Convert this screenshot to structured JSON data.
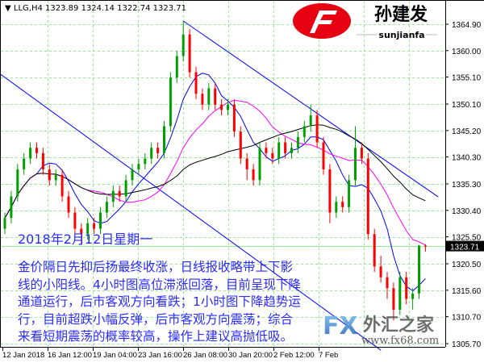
{
  "header": {
    "symbol": "LLG,H4",
    "open": "1323.89",
    "high": "1324.14",
    "low": "1322.74",
    "close": "1323.71"
  },
  "logo": {
    "name": "孙建发",
    "pinyin": "sunjianfa",
    "letter": "F"
  },
  "watermark": {
    "fx": "FX",
    "cn": "外汇之家",
    "url": "www.fx68.com"
  },
  "annotation": {
    "date": "2018年2月12日星期一",
    "lines": [
      "金价隔日先抑后扬最终收涨，日线报收略带上下影",
      "线的小阳线。4小时图高位滞涨回落，目前呈现下降",
      "通道运行，后市客观方向看跌；1小时图下降趋势运",
      "行，目前超跌小幅反弹，后市客观方向震荡；综合",
      "来看短期震荡的概率较高，操作上建议高抛低吸。"
    ]
  },
  "chart_data": {
    "type": "candlestick",
    "symbol": "LLG",
    "timeframe": "H4",
    "grid": true,
    "colors": {
      "bull": "#00a000",
      "bear": "#ff0000",
      "grid": "#90ee90",
      "trendline": "#0000ff",
      "ma_fast": "#0000ff",
      "ma_mid": "#ff00ff",
      "ma_slow": "#000000",
      "price_line": "#90ee90",
      "text": "#2b2bff"
    },
    "ylim": [
      1304.5,
      1368.5
    ],
    "y_ticks": [
      "1364.90",
      "1360.00",
      "1355.10",
      "1350.10",
      "1345.20",
      "1340.30",
      "1335.30",
      "1330.40",
      "1325.50",
      "1320.50",
      "1315.60",
      "1310.70",
      "1305.70"
    ],
    "x_ticks": [
      "12 Jan 2018",
      "16 Jan 12:00",
      "19 Jan 04:00",
      "23 Jan 16:00",
      "26 Jan 08:00",
      "30 Jan 20:00",
      "2 Feb 12:00",
      "7 Feb"
    ],
    "current_price": "1323.71",
    "ohlc": [
      [
        1327,
        1330,
        1326,
        1329
      ],
      [
        1329,
        1334,
        1328,
        1333
      ],
      [
        1333,
        1339,
        1332,
        1338
      ],
      [
        1338,
        1341,
        1337,
        1340
      ],
      [
        1340,
        1343,
        1339,
        1342
      ],
      [
        1342,
        1343,
        1340,
        1341
      ],
      [
        1341,
        1342,
        1337,
        1338
      ],
      [
        1338,
        1339,
        1335,
        1336
      ],
      [
        1336,
        1338,
        1335,
        1337
      ],
      [
        1337,
        1338,
        1332,
        1333
      ],
      [
        1333,
        1334,
        1329,
        1330
      ],
      [
        1330,
        1331,
        1326,
        1327
      ],
      [
        1327,
        1328,
        1324,
        1326
      ],
      [
        1326,
        1329,
        1325,
        1328
      ],
      [
        1328,
        1329,
        1326,
        1327
      ],
      [
        1327,
        1331,
        1326,
        1330
      ],
      [
        1330,
        1333,
        1329,
        1332
      ],
      [
        1332,
        1335,
        1331,
        1334
      ],
      [
        1334,
        1335,
        1332,
        1333
      ],
      [
        1333,
        1337,
        1332,
        1336
      ],
      [
        1336,
        1339,
        1335,
        1338
      ],
      [
        1338,
        1340,
        1337,
        1339
      ],
      [
        1339,
        1341,
        1338,
        1340
      ],
      [
        1340,
        1343,
        1339,
        1342
      ],
      [
        1342,
        1343,
        1340,
        1341
      ],
      [
        1341,
        1347,
        1340,
        1346
      ],
      [
        1346,
        1356,
        1345,
        1355
      ],
      [
        1355,
        1360,
        1354,
        1359
      ],
      [
        1359,
        1365.5,
        1358,
        1363
      ],
      [
        1363,
        1364,
        1355,
        1356
      ],
      [
        1356,
        1357,
        1351,
        1352
      ],
      [
        1352,
        1353,
        1349,
        1350
      ],
      [
        1350,
        1354,
        1349,
        1353
      ],
      [
        1353,
        1354,
        1349,
        1350
      ],
      [
        1350,
        1351,
        1348,
        1349
      ],
      [
        1349,
        1351,
        1348,
        1350
      ],
      [
        1350,
        1351,
        1344,
        1345
      ],
      [
        1345,
        1346,
        1339,
        1340
      ],
      [
        1340,
        1341,
        1336,
        1338
      ],
      [
        1338,
        1339,
        1335,
        1336
      ],
      [
        1336,
        1343,
        1335,
        1342
      ],
      [
        1342,
        1343,
        1340,
        1341
      ],
      [
        1341,
        1342,
        1339,
        1340
      ],
      [
        1340,
        1344,
        1339,
        1343
      ],
      [
        1343,
        1344,
        1340,
        1341
      ],
      [
        1341,
        1343,
        1340,
        1342
      ],
      [
        1342,
        1345,
        1341,
        1344
      ],
      [
        1344,
        1347,
        1343,
        1346
      ],
      [
        1346,
        1350,
        1345,
        1348
      ],
      [
        1348,
        1349,
        1342,
        1343
      ],
      [
        1343,
        1344,
        1337,
        1338
      ],
      [
        1338,
        1339,
        1328,
        1330
      ],
      [
        1330,
        1333,
        1329,
        1332
      ],
      [
        1332,
        1333,
        1330,
        1331
      ],
      [
        1331,
        1337,
        1330,
        1336
      ],
      [
        1336,
        1346,
        1335,
        1342
      ],
      [
        1342,
        1343,
        1339,
        1340
      ],
      [
        1340,
        1341,
        1325,
        1326
      ],
      [
        1326,
        1327,
        1319,
        1320
      ],
      [
        1320,
        1322,
        1317,
        1318
      ],
      [
        1318,
        1319,
        1314,
        1316
      ],
      [
        1316,
        1317,
        1310,
        1312
      ],
      [
        1312,
        1319,
        1311,
        1318
      ],
      [
        1318,
        1319,
        1313,
        1314
      ],
      [
        1314,
        1316,
        1312,
        1315
      ],
      [
        1315,
        1324,
        1314,
        1323.89
      ],
      [
        1323.89,
        1324.14,
        1322.74,
        1323.71
      ]
    ],
    "trendlines": [
      {
        "from": {
          "bar": 28,
          "price": 1365.5
        },
        "to": {
          "bar": 68,
          "price": 1332.9
        }
      },
      {
        "from": {
          "bar": -1,
          "price": 1355.9
        },
        "to": {
          "bar": 59,
          "price": 1304.5
        }
      }
    ]
  }
}
